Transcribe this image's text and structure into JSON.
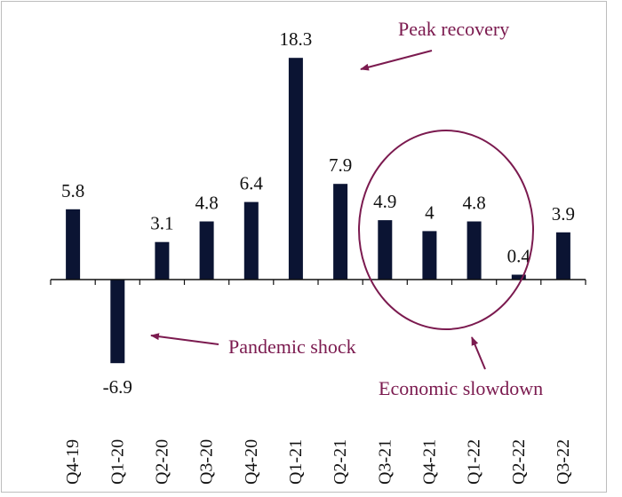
{
  "chart_data": {
    "type": "bar",
    "categories": [
      "Q4-19",
      "Q1-20",
      "Q2-20",
      "Q3-20",
      "Q4-20",
      "Q1-21",
      "Q2-21",
      "Q3-21",
      "Q4-21",
      "Q1-22",
      "Q2-22",
      "Q3-22"
    ],
    "values": [
      5.8,
      -6.9,
      3.1,
      4.8,
      6.4,
      18.3,
      7.9,
      4.9,
      4,
      4.8,
      0.4,
      3.9
    ],
    "value_labels": [
      "5.8",
      "-6.9",
      "3.1",
      "4.8",
      "6.4",
      "18.3",
      "7.9",
      "4.9",
      "4",
      "4.8",
      "0.4",
      "3.9"
    ],
    "title": "",
    "xlabel": "",
    "ylabel": "",
    "grid": false,
    "legend": "none",
    "annotations": [
      {
        "id": "peak",
        "text": "Peak recovery",
        "target_category": "Q1-21"
      },
      {
        "id": "pandemic",
        "text": "Pandemic shock",
        "target_category": "Q1-20"
      },
      {
        "id": "slowdown",
        "text": "Economic slowdown",
        "target_categories": [
          "Q3-21",
          "Q4-21",
          "Q1-22",
          "Q2-22"
        ]
      }
    ]
  },
  "colors": {
    "bar": "#0b1433",
    "axis": "#111111",
    "annotation": "#7b1a4f"
  }
}
